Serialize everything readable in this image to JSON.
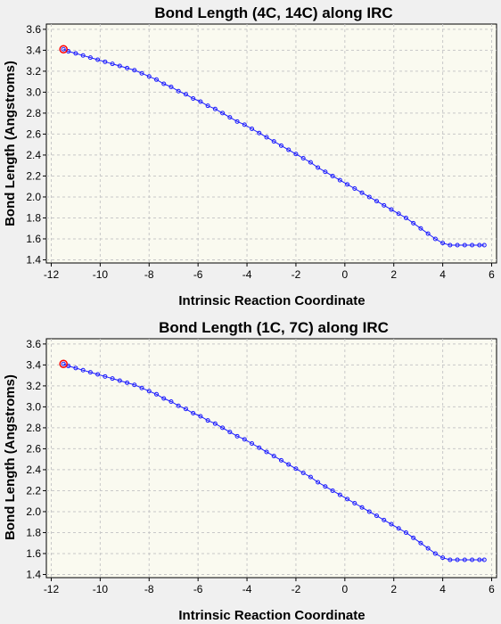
{
  "chart_data": [
    {
      "type": "line",
      "title": "Bond Length (4C, 14C) along IRC",
      "xlabel": "Intrinsic Reaction Coordinate",
      "ylabel": "Bond Length (Angstroms)",
      "xlim": [
        -12.2,
        6.2
      ],
      "ylim": [
        1.37,
        3.65
      ],
      "xticks": [
        -12,
        -10,
        -8,
        -6,
        -4,
        -2,
        0,
        2,
        4,
        6
      ],
      "xtick_labels": [
        "-12",
        "-10",
        "-8",
        "-6",
        "-4",
        "-2",
        "0",
        "2",
        "4",
        "6"
      ],
      "yticks": [
        1.4,
        1.6,
        1.8,
        2.0,
        2.2,
        2.4,
        2.6,
        2.8,
        3.0,
        3.2,
        3.4,
        3.6
      ],
      "ytick_labels": [
        "1.4",
        "1.6",
        "1.8",
        "2.0",
        "2.2",
        "2.4",
        "2.6",
        "2.8",
        "3.0",
        "3.2",
        "3.4",
        "3.6"
      ],
      "grid": true,
      "colors": {
        "line": "#1a1aff",
        "marker": "#1a1aff",
        "highlight": "#ff0000",
        "plot_bg": "#fafaf0",
        "grid": "#c8c8c8"
      },
      "highlight_x": -11.5,
      "series": [
        {
          "x": [
            -11.5,
            -11.3,
            -11.0,
            -10.7,
            -10.4,
            -10.1,
            -9.8,
            -9.5,
            -9.2,
            -8.9,
            -8.6,
            -8.3,
            -8.0,
            -7.7,
            -7.4,
            -7.1,
            -6.8,
            -6.5,
            -6.2,
            -5.9,
            -5.6,
            -5.3,
            -5.0,
            -4.7,
            -4.4,
            -4.1,
            -3.8,
            -3.5,
            -3.2,
            -2.9,
            -2.6,
            -2.3,
            -2.0,
            -1.7,
            -1.4,
            -1.1,
            -0.8,
            -0.5,
            -0.2,
            0.1,
            0.4,
            0.7,
            1.0,
            1.3,
            1.6,
            1.9,
            2.2,
            2.5,
            2.8,
            3.1,
            3.4,
            3.7,
            4.0,
            4.3,
            4.6,
            4.9,
            5.2,
            5.5,
            5.7
          ],
          "y": [
            3.41,
            3.39,
            3.37,
            3.35,
            3.33,
            3.31,
            3.29,
            3.27,
            3.25,
            3.23,
            3.21,
            3.18,
            3.15,
            3.12,
            3.08,
            3.05,
            3.01,
            2.98,
            2.94,
            2.91,
            2.87,
            2.84,
            2.8,
            2.76,
            2.72,
            2.69,
            2.65,
            2.61,
            2.57,
            2.53,
            2.49,
            2.45,
            2.41,
            2.37,
            2.33,
            2.28,
            2.24,
            2.2,
            2.16,
            2.12,
            2.08,
            2.04,
            2.0,
            1.96,
            1.92,
            1.88,
            1.84,
            1.8,
            1.75,
            1.7,
            1.65,
            1.6,
            1.56,
            1.54,
            1.54,
            1.54,
            1.54,
            1.54,
            1.54
          ]
        }
      ]
    },
    {
      "type": "line",
      "title": "Bond Length (1C, 7C) along IRC",
      "xlabel": "Intrinsic Reaction Coordinate",
      "ylabel": "Bond Length (Angstroms)",
      "xlim": [
        -12.2,
        6.2
      ],
      "ylim": [
        1.37,
        3.65
      ],
      "xticks": [
        -12,
        -10,
        -8,
        -6,
        -4,
        -2,
        0,
        2,
        4,
        6
      ],
      "xtick_labels": [
        "-12",
        "-10",
        "-8",
        "-6",
        "-4",
        "-2",
        "0",
        "2",
        "4",
        "6"
      ],
      "yticks": [
        1.4,
        1.6,
        1.8,
        2.0,
        2.2,
        2.4,
        2.6,
        2.8,
        3.0,
        3.2,
        3.4,
        3.6
      ],
      "ytick_labels": [
        "1.4",
        "1.6",
        "1.8",
        "2.0",
        "2.2",
        "2.4",
        "2.6",
        "2.8",
        "3.0",
        "3.2",
        "3.4",
        "3.6"
      ],
      "grid": true,
      "colors": {
        "line": "#1a1aff",
        "marker": "#1a1aff",
        "highlight": "#ff0000",
        "plot_bg": "#fafaf0",
        "grid": "#c8c8c8"
      },
      "highlight_x": -11.5,
      "series": [
        {
          "x": [
            -11.5,
            -11.3,
            -11.0,
            -10.7,
            -10.4,
            -10.1,
            -9.8,
            -9.5,
            -9.2,
            -8.9,
            -8.6,
            -8.3,
            -8.0,
            -7.7,
            -7.4,
            -7.1,
            -6.8,
            -6.5,
            -6.2,
            -5.9,
            -5.6,
            -5.3,
            -5.0,
            -4.7,
            -4.4,
            -4.1,
            -3.8,
            -3.5,
            -3.2,
            -2.9,
            -2.6,
            -2.3,
            -2.0,
            -1.7,
            -1.4,
            -1.1,
            -0.8,
            -0.5,
            -0.2,
            0.1,
            0.4,
            0.7,
            1.0,
            1.3,
            1.6,
            1.9,
            2.2,
            2.5,
            2.8,
            3.1,
            3.4,
            3.7,
            4.0,
            4.3,
            4.6,
            4.9,
            5.2,
            5.5,
            5.7
          ],
          "y": [
            3.41,
            3.39,
            3.37,
            3.35,
            3.33,
            3.31,
            3.29,
            3.27,
            3.25,
            3.23,
            3.21,
            3.18,
            3.15,
            3.12,
            3.08,
            3.05,
            3.01,
            2.98,
            2.94,
            2.91,
            2.87,
            2.84,
            2.8,
            2.76,
            2.72,
            2.69,
            2.65,
            2.61,
            2.57,
            2.53,
            2.49,
            2.45,
            2.41,
            2.37,
            2.33,
            2.28,
            2.24,
            2.2,
            2.16,
            2.12,
            2.08,
            2.04,
            2.0,
            1.96,
            1.92,
            1.88,
            1.84,
            1.8,
            1.75,
            1.7,
            1.65,
            1.6,
            1.56,
            1.54,
            1.54,
            1.54,
            1.54,
            1.54,
            1.54
          ]
        }
      ]
    }
  ]
}
